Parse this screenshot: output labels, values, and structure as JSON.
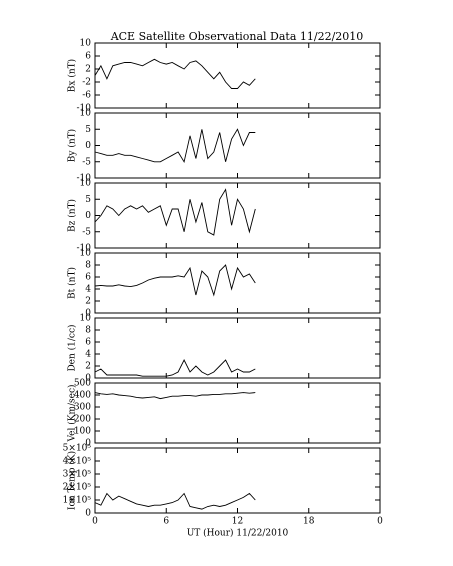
{
  "title": "ACE Satellite Observational Data   11/22/2010",
  "chart_data": [
    {
      "type": "line",
      "ylabel": "Bx (nT)",
      "ylim": [
        -10,
        10
      ],
      "yticks": [
        -10,
        -6,
        -2,
        2,
        6,
        10
      ],
      "xlim": [
        0,
        24
      ],
      "color": "#000000",
      "x": [
        0,
        0.5,
        1,
        1.5,
        2,
        2.5,
        3,
        3.5,
        4,
        4.5,
        5,
        5.5,
        6,
        6.5,
        7,
        7.5,
        8,
        8.5,
        9,
        9.5,
        10,
        10.5,
        11,
        11.5,
        12,
        12.5,
        13,
        13.5
      ],
      "values": [
        0,
        3,
        -1,
        3,
        3.5,
        4,
        4,
        3.5,
        3,
        4,
        5,
        4,
        3.5,
        4,
        3,
        2,
        4,
        4.5,
        3,
        1,
        -1,
        1,
        -2,
        -4,
        -4,
        -2,
        -3,
        -1
      ]
    },
    {
      "type": "line",
      "ylabel": "By (nT)",
      "ylim": [
        -10,
        10
      ],
      "yticks": [
        -10,
        -5,
        0,
        5,
        10
      ],
      "xlim": [
        0,
        24
      ],
      "color": "#000000",
      "x": [
        0,
        0.5,
        1,
        1.5,
        2,
        2.5,
        3,
        3.5,
        4,
        4.5,
        5,
        5.5,
        6,
        6.5,
        7,
        7.5,
        8,
        8.5,
        9,
        9.5,
        10,
        10.5,
        11,
        11.5,
        12,
        12.5,
        13,
        13.5
      ],
      "values": [
        -2,
        -2.5,
        -3,
        -3,
        -2.5,
        -3,
        -3,
        -3.5,
        -4,
        -4.5,
        -5,
        -5,
        -4,
        -3,
        -2,
        -5,
        3,
        -4,
        5,
        -4,
        -2,
        4,
        -5,
        2,
        5,
        0,
        4,
        4
      ]
    },
    {
      "type": "line",
      "ylabel": "Bz (nT)",
      "ylim": [
        -10,
        10
      ],
      "yticks": [
        -10,
        -5,
        0,
        5,
        10
      ],
      "xlim": [
        0,
        24
      ],
      "color": "#000000",
      "x": [
        0,
        0.5,
        1,
        1.5,
        2,
        2.5,
        3,
        3.5,
        4,
        4.5,
        5,
        5.5,
        6,
        6.5,
        7,
        7.5,
        8,
        8.5,
        9,
        9.5,
        10,
        10.5,
        11,
        11.5,
        12,
        12.5,
        13,
        13.5
      ],
      "values": [
        -2,
        0,
        3,
        2,
        0,
        2,
        3,
        2,
        3,
        1,
        2,
        3,
        -3,
        2,
        2,
        -5,
        5,
        -2,
        4,
        -5,
        -6,
        5,
        8,
        -3,
        5,
        2,
        -5,
        2
      ]
    },
    {
      "type": "line",
      "ylabel": "Bt (nT)",
      "ylim": [
        0,
        10
      ],
      "yticks": [
        0,
        2,
        4,
        6,
        8,
        10
      ],
      "xlim": [
        0,
        24
      ],
      "color": "#000000",
      "x": [
        0,
        0.5,
        1,
        1.5,
        2,
        2.5,
        3,
        3.5,
        4,
        4.5,
        5,
        5.5,
        6,
        6.5,
        7,
        7.5,
        8,
        8.5,
        9,
        9.5,
        10,
        10.5,
        11,
        11.5,
        12,
        12.5,
        13,
        13.5
      ],
      "values": [
        4.5,
        4.6,
        4.5,
        4.5,
        4.7,
        4.5,
        4.4,
        4.6,
        5,
        5.5,
        5.8,
        6,
        6,
        6,
        6.2,
        6,
        7.5,
        3,
        7,
        6,
        3,
        7,
        8,
        4,
        7.5,
        6,
        6.5,
        5
      ]
    },
    {
      "type": "line",
      "ylabel": "Den (1/cc)",
      "ylim": [
        0,
        10
      ],
      "yticks": [
        0,
        2,
        4,
        6,
        8,
        10
      ],
      "xlim": [
        0,
        24
      ],
      "color": "#000000",
      "x": [
        0,
        0.5,
        1,
        1.5,
        2,
        2.5,
        3,
        3.5,
        4,
        4.5,
        5,
        5.5,
        6,
        6.5,
        7,
        7.5,
        8,
        8.5,
        9,
        9.5,
        10,
        10.5,
        11,
        11.5,
        12,
        12.5,
        13,
        13.5
      ],
      "values": [
        1,
        1.5,
        0.5,
        0.5,
        0.5,
        0.5,
        0.5,
        0.5,
        0.3,
        0.3,
        0.3,
        0.3,
        0.3,
        0.5,
        1,
        3,
        1,
        2,
        1,
        0.5,
        1,
        2,
        3,
        1,
        1.5,
        1,
        1,
        1.5
      ]
    },
    {
      "type": "line",
      "ylabel": "Vel (Km/sec)",
      "ylim": [
        0,
        500
      ],
      "yticks": [
        0,
        100,
        200,
        300,
        400,
        500
      ],
      "xlim": [
        0,
        24
      ],
      "color": "#000000",
      "x": [
        0,
        0.5,
        1,
        1.5,
        2,
        2.5,
        3,
        3.5,
        4,
        4.5,
        5,
        5.5,
        6,
        6.5,
        7,
        7.5,
        8,
        8.5,
        9,
        9.5,
        10,
        10.5,
        11,
        11.5,
        12,
        12.5,
        13,
        13.5
      ],
      "values": [
        420,
        410,
        405,
        410,
        400,
        395,
        390,
        380,
        375,
        380,
        385,
        370,
        380,
        390,
        390,
        395,
        395,
        390,
        400,
        400,
        405,
        405,
        410,
        410,
        415,
        420,
        415,
        420
      ]
    },
    {
      "type": "line",
      "ylabel": "Ion Temp (K)",
      "ylim": [
        0,
        500000
      ],
      "xlim": [
        0,
        24
      ],
      "color": "#000000",
      "yticks": [
        0,
        {
          "value": 100000,
          "label": "1×10⁵"
        },
        {
          "value": 200000,
          "label": "2×10⁵"
        },
        {
          "value": 300000,
          "label": "3×10⁵"
        },
        {
          "value": 400000,
          "label": "4×10⁵"
        },
        {
          "value": 500000,
          "label": "5×10⁵"
        }
      ],
      "xlabel": "UT (Hour)  11/22/2010",
      "xticks": [
        0,
        6,
        12,
        18,
        {
          "value": 24,
          "label": "0"
        }
      ],
      "x": [
        0,
        0.5,
        1,
        1.5,
        2,
        2.5,
        3,
        3.5,
        4,
        4.5,
        5,
        5.5,
        6,
        6.5,
        7,
        7.5,
        8,
        8.5,
        9,
        9.5,
        10,
        10.5,
        11,
        11.5,
        12,
        12.5,
        13,
        13.5
      ],
      "values": [
        80000,
        60000,
        150000,
        100000,
        130000,
        110000,
        90000,
        70000,
        60000,
        50000,
        60000,
        60000,
        70000,
        80000,
        100000,
        150000,
        50000,
        40000,
        30000,
        50000,
        60000,
        50000,
        60000,
        80000,
        100000,
        120000,
        150000,
        100000
      ]
    }
  ]
}
